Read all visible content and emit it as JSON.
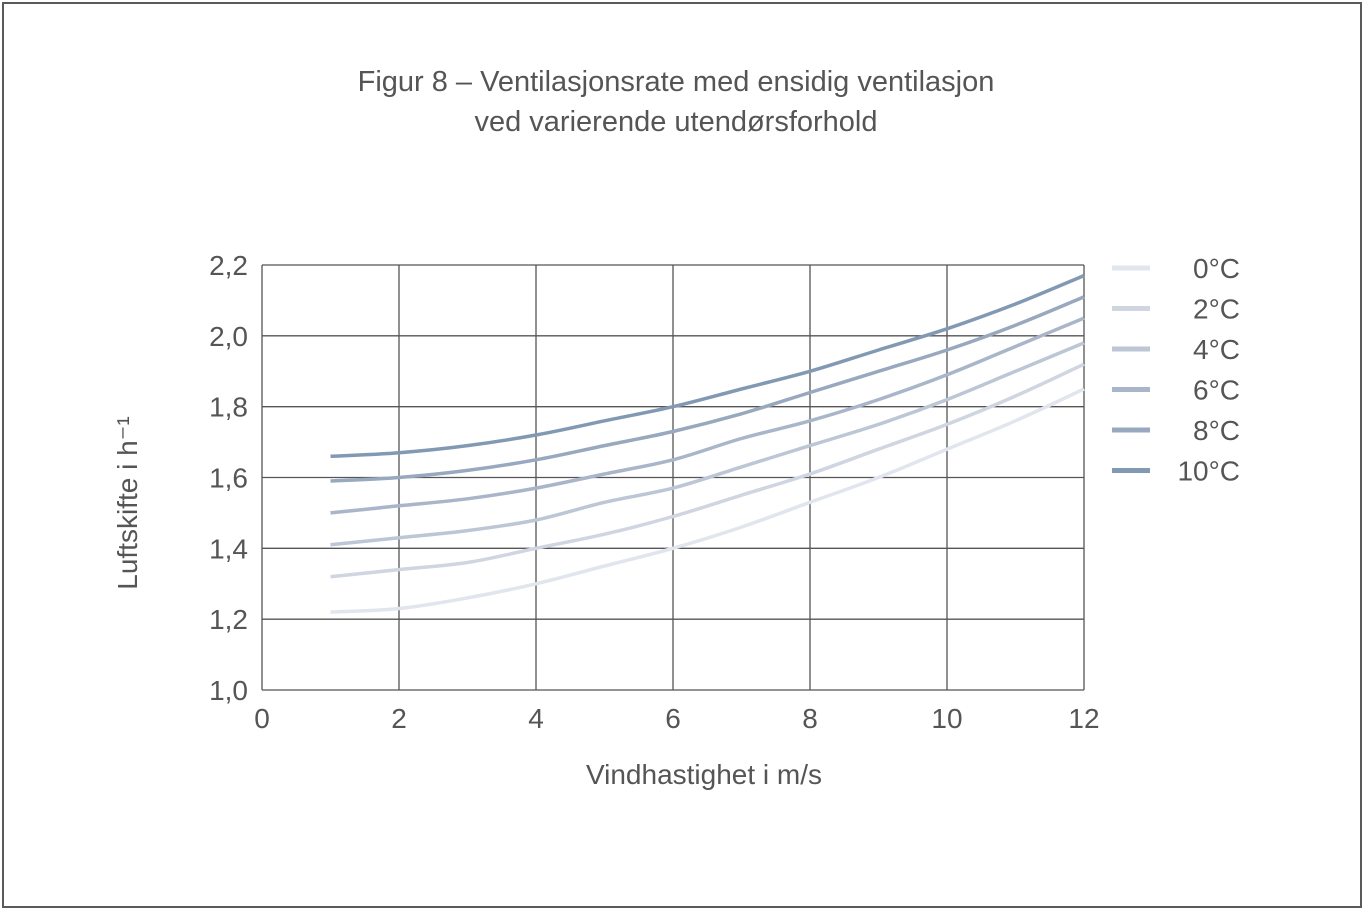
{
  "chart_data": {
    "type": "line",
    "title": [
      "Figur 8 – Ventilasjonsrate med ensidig ventilasjon",
      "ved varierende utendørsforhold"
    ],
    "xlabel": "Vindhastighet i m/s",
    "ylabel": "Luftskifte i h⁻¹",
    "xlim": [
      0,
      12
    ],
    "ylim": [
      1.0,
      2.2
    ],
    "xticks": [
      0,
      2,
      4,
      6,
      8,
      10,
      12
    ],
    "xtick_labels": [
      "0",
      "2",
      "4",
      "6",
      "8",
      "10",
      "12"
    ],
    "yticks": [
      1.0,
      1.2,
      1.4,
      1.6,
      1.8,
      2.0,
      2.2
    ],
    "ytick_labels": [
      "1,0",
      "1,2",
      "1,4",
      "1,6",
      "1,8",
      "2,0",
      "2,2"
    ],
    "grid": true,
    "legend_position": "right",
    "x": [
      1,
      2,
      3,
      4,
      5,
      6,
      7,
      8,
      9,
      10,
      11,
      12
    ],
    "series": [
      {
        "name": "0°C",
        "color": "#e1e5ed",
        "values": [
          1.22,
          1.23,
          1.26,
          1.3,
          1.35,
          1.4,
          1.46,
          1.53,
          1.6,
          1.68,
          1.76,
          1.85
        ]
      },
      {
        "name": "2°C",
        "color": "#cfd6e1",
        "values": [
          1.32,
          1.34,
          1.36,
          1.4,
          1.44,
          1.49,
          1.55,
          1.61,
          1.68,
          1.75,
          1.83,
          1.92
        ]
      },
      {
        "name": "4°C",
        "color": "#bcc6d5",
        "values": [
          1.41,
          1.43,
          1.45,
          1.48,
          1.53,
          1.57,
          1.63,
          1.69,
          1.75,
          1.82,
          1.9,
          1.98
        ]
      },
      {
        "name": "6°C",
        "color": "#a9b6c9",
        "values": [
          1.5,
          1.52,
          1.54,
          1.57,
          1.61,
          1.65,
          1.71,
          1.76,
          1.82,
          1.89,
          1.97,
          2.05
        ]
      },
      {
        "name": "8°C",
        "color": "#98a8be",
        "values": [
          1.59,
          1.6,
          1.62,
          1.65,
          1.69,
          1.73,
          1.78,
          1.84,
          1.9,
          1.96,
          2.03,
          2.11
        ]
      },
      {
        "name": "10°C",
        "color": "#8299b3",
        "values": [
          1.66,
          1.67,
          1.69,
          1.72,
          1.76,
          1.8,
          1.85,
          1.9,
          1.96,
          2.02,
          2.09,
          2.17
        ]
      }
    ]
  }
}
